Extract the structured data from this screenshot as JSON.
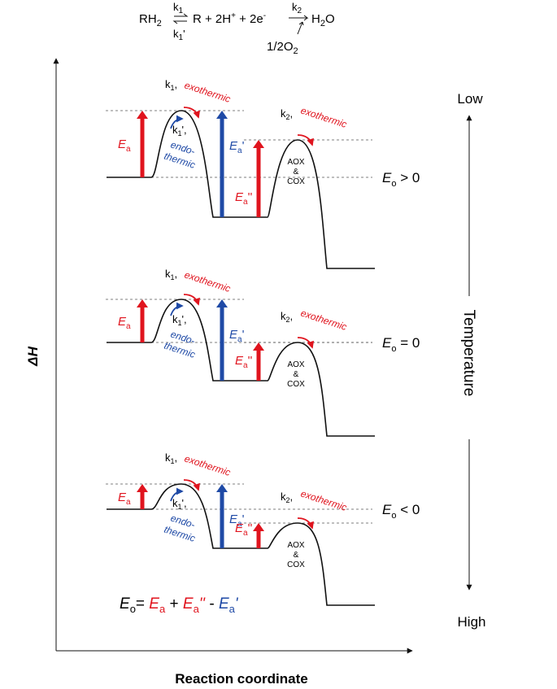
{
  "equation": {
    "reactant": "RH",
    "reactant_sub": "2",
    "k1": "k",
    "k1_sub": "1",
    "k1r": "k",
    "k1r_sub": "1",
    "k1r_prime": "'",
    "middle": "R + 2H",
    "h_sup": "+",
    "plus_e": " + 2e",
    "e_sup": "-",
    "k2": "k",
    "k2_sub": "2",
    "product": "H",
    "product_sub": "2",
    "product_end": "O",
    "oxygen": "1/2O",
    "oxygen_sub": "2"
  },
  "axes": {
    "y_label": "ΔH",
    "x_label": "Reaction coordinate",
    "temperature_label": "Temperature",
    "temp_low": "Low",
    "temp_high": "High"
  },
  "panels": [
    {
      "k1": "k",
      "k1_sub": "1",
      "k1_comma": ",",
      "exo1": "exothermic",
      "k1r": "k",
      "k1r_sub": "1",
      "k1r_comma": "',",
      "endo_a": "endo-",
      "endo_b": "thermic",
      "k2": "k",
      "k2_sub": "2",
      "k2_comma": ",",
      "exo2": "exothermic",
      "ea": "E",
      "ea_sub": "a",
      "ea_p": "E",
      "ea_p_sub": "a",
      "ea_p_mark": "'",
      "ea_pp": "E",
      "ea_pp_sub": "a",
      "ea_pp_mark": "''",
      "aox": "AOX",
      "amp": "&",
      "cox": "COX",
      "eo": "E",
      "eo_sub": "o",
      "eo_rel": " > 0"
    },
    {
      "k1": "k",
      "k1_sub": "1",
      "k1_comma": ",",
      "exo1": "exothermic",
      "k1r": "k",
      "k1r_sub": "1",
      "k1r_comma": "',",
      "endo_a": "endo-",
      "endo_b": "thermic",
      "k2": "k",
      "k2_sub": "2",
      "k2_comma": ",",
      "exo2": "exothermic",
      "ea": "E",
      "ea_sub": "a",
      "ea_p": "E",
      "ea_p_sub": "a",
      "ea_p_mark": "'",
      "ea_pp": "E",
      "ea_pp_sub": "a",
      "ea_pp_mark": "''",
      "aox": "AOX",
      "amp": "&",
      "cox": "COX",
      "eo": "E",
      "eo_sub": "o",
      "eo_rel": " = 0"
    },
    {
      "k1": "k",
      "k1_sub": "1",
      "k1_comma": ",",
      "exo1": "exothermic",
      "k1r": "k",
      "k1r_sub": "1",
      "k1r_comma": "',",
      "endo_a": "endo-",
      "endo_b": "thermic",
      "k2": "k",
      "k2_sub": "2",
      "k2_comma": ",",
      "exo2": "exothermic",
      "ea": "E",
      "ea_sub": "a",
      "ea_p": "E",
      "ea_p_sub": "a",
      "ea_p_mark": "'",
      "ea_pp": "E",
      "ea_pp_sub": "a",
      "ea_pp_mark": "''",
      "aox": "AOX",
      "amp": "&",
      "cox": "COX",
      "eo": "E",
      "eo_sub": "o",
      "eo_rel": " < 0"
    }
  ],
  "formula": {
    "lhs": "E",
    "lhs_sub": "o",
    "eq": "= ",
    "t1": "E",
    "t1_sub": "a",
    "plus": " + ",
    "t2": "E",
    "t2_sub": "a",
    "t2_mark": "''",
    "minus": " - ",
    "t3": "E",
    "t3_sub": "a",
    "t3_mark": "'"
  },
  "colors": {
    "red": "#e0141e",
    "blue": "#1f4aa6",
    "black": "#111111"
  }
}
